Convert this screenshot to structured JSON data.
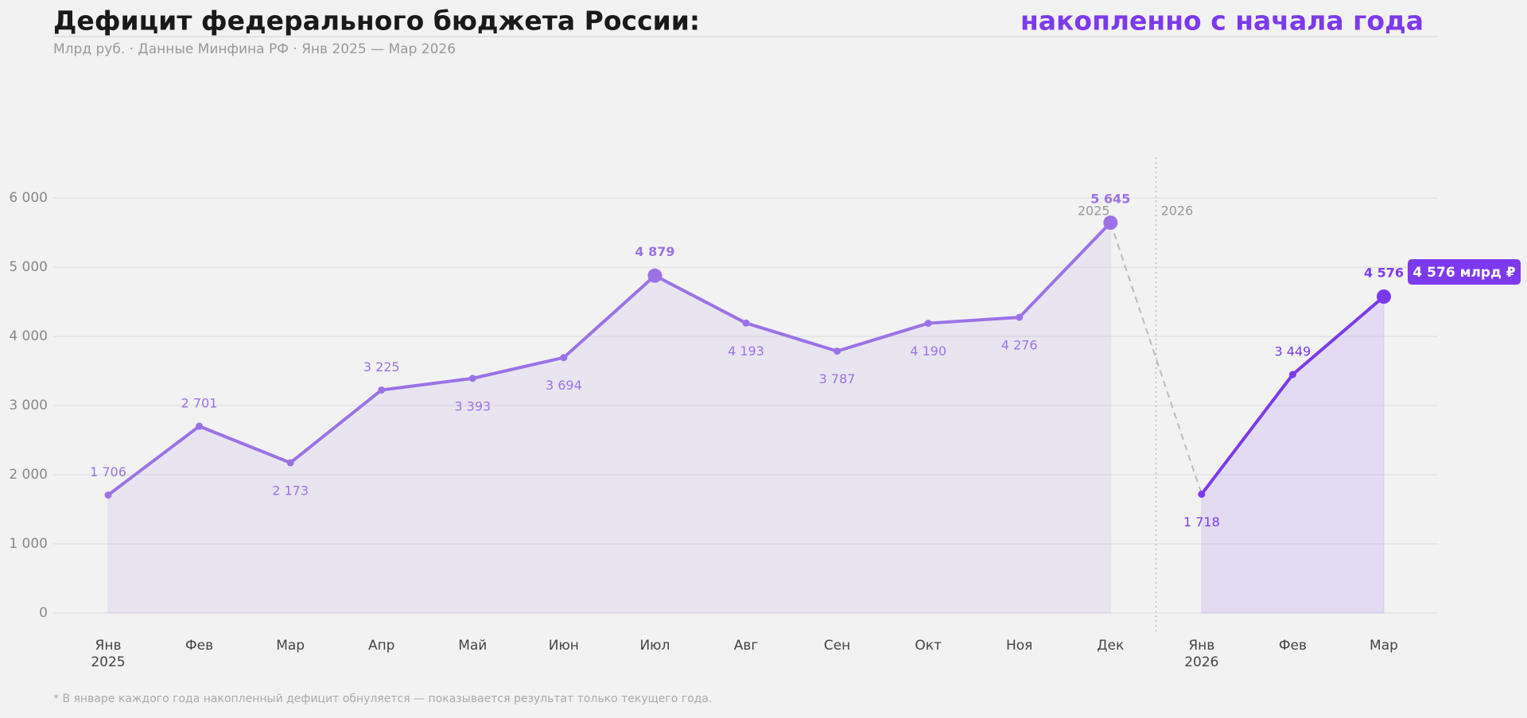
{
  "chart_data": {
    "type": "line",
    "title": "Дефицит федерального бюджета России:",
    "title_highlight": "накопленно с начала года",
    "subtitle": "Млрд руб. · Данные Минфина РФ · Янв 2025 — Мар 2026",
    "footnote": "* В январе каждого года накопленный дефицит обнуляется — показывается результат только текущего года.",
    "badge": "4 576 млрд ₽",
    "categories": [
      "Янв",
      "Фев",
      "Мар",
      "Апр",
      "Май",
      "Июн",
      "Июл",
      "Авг",
      "Сен",
      "Окт",
      "Ноя",
      "Дек",
      "Янв",
      "Фев",
      "Мар"
    ],
    "series": [
      {
        "name": "2025",
        "color": "#9b72e6",
        "values": [
          1706,
          2701,
          2173,
          3225,
          3393,
          3694,
          4879,
          4193,
          3787,
          4190,
          4276,
          5645,
          null,
          null,
          null
        ],
        "value_labels": [
          "1 706",
          "2 701",
          "2 173",
          "3 225",
          "3 393",
          "3 694",
          "4 879",
          "4 193",
          "3 787",
          "4 190",
          "4 276",
          "5 645",
          null,
          null,
          null
        ]
      },
      {
        "name": "2026",
        "color": "#7c3aed",
        "values": [
          null,
          null,
          null,
          null,
          null,
          null,
          null,
          null,
          null,
          null,
          null,
          null,
          1718,
          3449,
          4576
        ],
        "value_labels": [
          null,
          null,
          null,
          null,
          null,
          null,
          null,
          null,
          null,
          null,
          null,
          null,
          "1 718",
          "3 449",
          "4 576"
        ]
      }
    ],
    "ylim": [
      -300,
      6600
    ],
    "yticks": [
      0,
      {
        "value": 1000,
        "label": "1 000"
      },
      {
        "value": 2000,
        "label": "2 000"
      },
      {
        "value": 3000,
        "label": "3 000"
      },
      {
        "value": 4000,
        "label": "4 000"
      },
      {
        "value": 5000,
        "label": "5 000"
      },
      {
        "value": 6000,
        "label": "6 000"
      }
    ],
    "grid": true
  }
}
